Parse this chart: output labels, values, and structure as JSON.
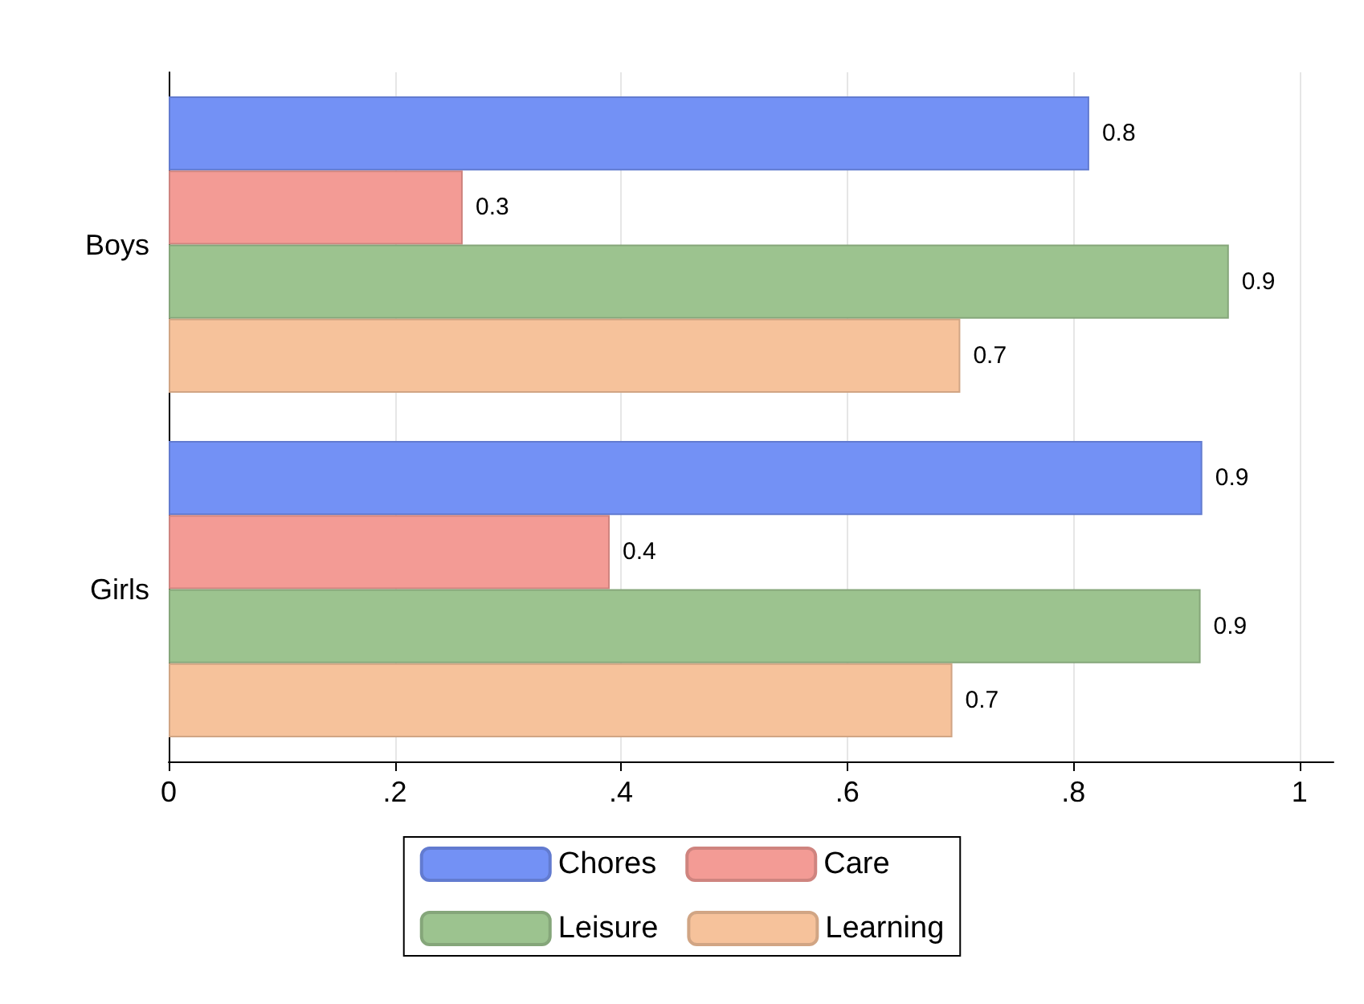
{
  "chart_data": {
    "type": "bar",
    "orientation": "horizontal",
    "categories": [
      "Boys",
      "Girls"
    ],
    "series": [
      {
        "name": "Chores",
        "color": "#7391f5",
        "values": [
          0.814,
          0.914
        ],
        "value_labels": [
          "0.8",
          "0.9"
        ]
      },
      {
        "name": "Care",
        "color": "#f39b95",
        "values": [
          0.26,
          0.39
        ],
        "value_labels": [
          "0.3",
          "0.4"
        ]
      },
      {
        "name": "Leisure",
        "color": "#9cc38f",
        "values": [
          0.9375,
          0.9125
        ],
        "value_labels": [
          "0.9",
          "0.9"
        ]
      },
      {
        "name": "Learning",
        "color": "#f6c29b",
        "values": [
          0.7,
          0.693
        ],
        "value_labels": [
          "0.7",
          "0.7"
        ]
      }
    ],
    "xlim": [
      0,
      1.03
    ],
    "xticks": [
      0,
      {
        "value": 0.2,
        "label": ".2"
      },
      {
        "value": 0.4,
        "label": ".4"
      },
      {
        "value": 0.6,
        "label": ".6"
      },
      {
        "value": 0.8,
        "label": ".8"
      },
      1
    ],
    "grid": "x",
    "legend": "bottom"
  }
}
